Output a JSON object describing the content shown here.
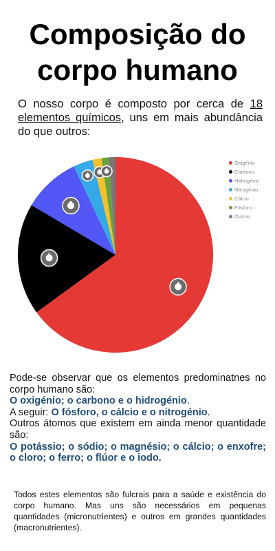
{
  "title": {
    "line1": "Composição do",
    "line2": "corpo humano"
  },
  "intro": {
    "before": "O nosso corpo é composto por cerca de ",
    "link": "18 elementos químicos",
    "after": ", uns em mais abundância do que outros:"
  },
  "chart_data": {
    "type": "pie",
    "title": "",
    "legend_position": "right",
    "slices": [
      {
        "label": "Oxigénio",
        "value": 65,
        "color": "#e53935"
      },
      {
        "label": "Carbono",
        "value": 18.5,
        "color": "#000000"
      },
      {
        "label": "Hidrogénio",
        "value": 9.5,
        "color": "#5357f5"
      },
      {
        "label": "Nitrogénio",
        "value": 3.2,
        "color": "#35a8e8"
      },
      {
        "label": "Cálcio",
        "value": 1.5,
        "color": "#f2c12e"
      },
      {
        "label": "Fósforo",
        "value": 1.2,
        "color": "#6aa23a"
      },
      {
        "label": "Outros",
        "value": 1.1,
        "color": "#777777"
      }
    ]
  },
  "body": {
    "line1": "Pode-se observar que os elementos predominatnes no corpo humano são:",
    "highlight1": " O oxigénio; o carbono e  o hidrogénio",
    "dot1": ".",
    "next_label": "A seguir: ",
    "highlight2": "O fósforo, o cálcio e o nitrogénio",
    "dot2": ".",
    "line3": "  Outros átomos que existem em ainda menor quantidade são:",
    "highlight3": "  O potássio; o sódio; o magnésio; o cálcio; o enxofre; o cloro; o ferro; o flúor e  o iodo."
  },
  "footer": "Todos estes elementos são fulcrais para a saúde e existência do corpo humano. Mas uns são necessários em pequenas quantidades (micronutrientes) e outros em grandes quantidades (macronutrientes).",
  "colors": {
    "highlight": "#1f4e79",
    "badge": "#6b6b6b"
  },
  "icons": {
    "badge": "touch-hand-icon"
  }
}
